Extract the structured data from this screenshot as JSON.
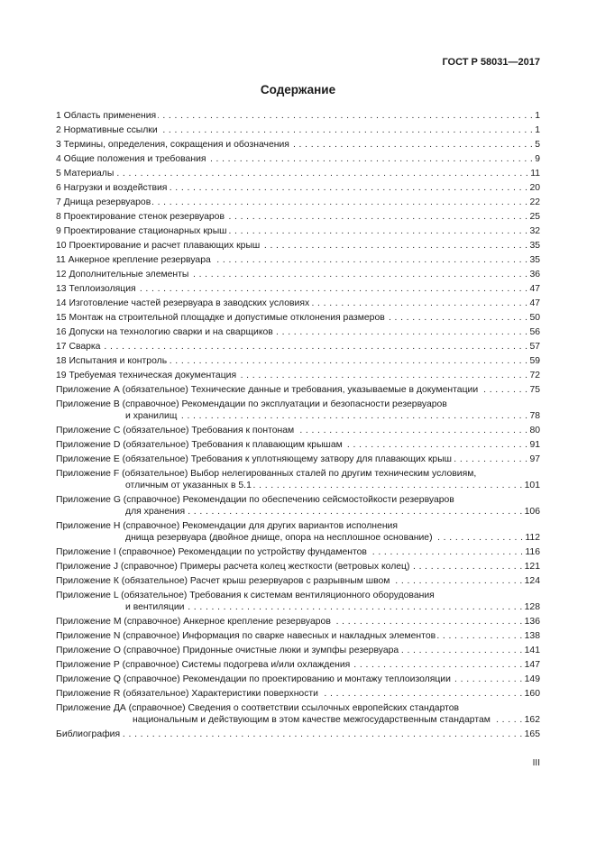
{
  "header": {
    "doc_id": "ГОСТ Р 58031—2017"
  },
  "toc": {
    "title": "Содержание",
    "entries": [
      {
        "lines": [
          "1 Область применения"
        ],
        "page": "1"
      },
      {
        "lines": [
          "2 Нормативные ссылки"
        ],
        "page": "1"
      },
      {
        "lines": [
          "3 Термины, определения, сокращения и обозначения"
        ],
        "page": "5"
      },
      {
        "lines": [
          "4 Общие положения и требования"
        ],
        "page": "9"
      },
      {
        "lines": [
          "5 Материалы"
        ],
        "page": "11"
      },
      {
        "lines": [
          "6 Нагрузки и воздействия"
        ],
        "page": "20"
      },
      {
        "lines": [
          "7 Днища резервуаров"
        ],
        "page": "22"
      },
      {
        "lines": [
          "8 Проектирование стенок резервуаров"
        ],
        "page": "25"
      },
      {
        "lines": [
          "9 Проектирование стационарных крыш"
        ],
        "page": "32"
      },
      {
        "lines": [
          "10 Проектирование и расчет плавающих крыш"
        ],
        "page": "35"
      },
      {
        "lines": [
          "11 Анкерное крепление резервуара"
        ],
        "page": "35"
      },
      {
        "lines": [
          "12 Дополнительные элементы"
        ],
        "page": "36"
      },
      {
        "lines": [
          "13 Теплоизоляция"
        ],
        "page": "47"
      },
      {
        "lines": [
          "14 Изготовление частей резервуара в заводских условиях"
        ],
        "page": "47"
      },
      {
        "lines": [
          "15 Монтаж на строительной площадке и допустимые отклонения размеров"
        ],
        "page": "50"
      },
      {
        "lines": [
          "16 Допуски на технологию сварки и на сварщиков"
        ],
        "page": "56"
      },
      {
        "lines": [
          "17 Сварка"
        ],
        "page": "57"
      },
      {
        "lines": [
          "18 Испытания и контроль"
        ],
        "page": "59"
      },
      {
        "lines": [
          "19 Требуемая техническая документация"
        ],
        "page": "72"
      },
      {
        "lines": [
          "Приложение А (обязательное) Технические данные и требования, указываемые в документации"
        ],
        "page": "75"
      },
      {
        "lines": [
          "Приложение В (справочное) Рекомендации по эксплуатации и безопасности резервуаров",
          "и хранилищ"
        ],
        "page": "78"
      },
      {
        "lines": [
          "Приложение С (обязательное) Требования к понтонам"
        ],
        "page": "80"
      },
      {
        "lines": [
          "Приложение D (обязательное) Требования к плавающим крышам"
        ],
        "page": "91"
      },
      {
        "lines": [
          "Приложение Е (обязательное) Требования к уплотняющему затвору для плавающих крыш"
        ],
        "page": "97"
      },
      {
        "lines": [
          "Приложение F (обязательное) Выбор нелегированных сталей по другим техническим условиям,",
          "отличным от указанных в 5.1"
        ],
        "page": "101"
      },
      {
        "lines": [
          "Приложение G (справочное) Рекомендации по обеспечению сейсмостойкости резервуаров",
          "для хранения"
        ],
        "page": "106"
      },
      {
        "lines": [
          "Приложение Н (справочное) Рекомендации для других вариантов исполнения",
          "днища резервуара (двойное днище, опора на несплошное основание)"
        ],
        "page": "112"
      },
      {
        "lines": [
          "Приложение I (справочное) Рекомендации по устройству фундаментов"
        ],
        "page": "116"
      },
      {
        "lines": [
          "Приложение J (справочное) Примеры расчета колец жесткости (ветровых колец)"
        ],
        "page": "121"
      },
      {
        "lines": [
          "Приложение К (обязательное) Расчет крыш резервуаров с разрывным швом"
        ],
        "page": "124"
      },
      {
        "lines": [
          "Приложение L (обязательное) Требования к системам вентиляционного оборудования",
          "и вентиляции"
        ],
        "page": "128"
      },
      {
        "lines": [
          "Приложение М (справочное) Анкерное крепление резервуаров"
        ],
        "page": "136"
      },
      {
        "lines": [
          "Приложение N (справочное) Информация по сварке навесных и накладных элементов"
        ],
        "page": "138"
      },
      {
        "lines": [
          "Приложение О (справочное) Придонные очистные люки и зумпфы резервуара"
        ],
        "page": "141"
      },
      {
        "lines": [
          "Приложение Р (справочное) Системы подогрева и/или охлаждения"
        ],
        "page": "147"
      },
      {
        "lines": [
          "Приложение Q (справочное) Рекомендации по проектированию и монтажу теплоизоляции"
        ],
        "page": "149"
      },
      {
        "lines": [
          "Приложение R (обязательное) Характеристики поверхности"
        ],
        "page": "160"
      },
      {
        "lines": [
          "Приложение ДА (справочное) Сведения о соответствии ссылочных европейских стандартов",
          "национальным и действующим в этом качестве межгосударственным стандартам"
        ],
        "page": "162"
      },
      {
        "lines": [
          "Библиография"
        ],
        "page": "165"
      }
    ]
  },
  "footer": {
    "page_number": "III"
  }
}
